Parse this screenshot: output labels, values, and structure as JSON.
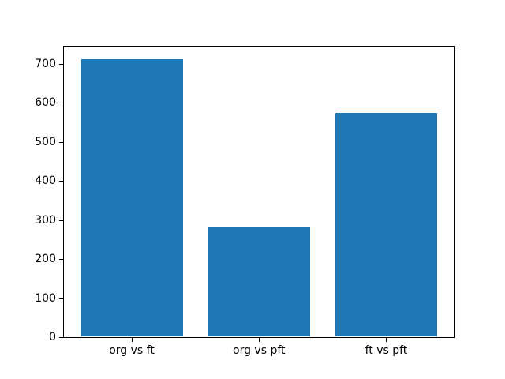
{
  "figure": {
    "background": "#ffffff",
    "axes_background": "#ffffff",
    "spine_color": "#000000",
    "tick_color": "#000000",
    "label_color": "#000000"
  },
  "chart_data": {
    "type": "bar",
    "categories": [
      "org vs ft",
      "org vs pft",
      "ft vs pft"
    ],
    "values": [
      713,
      282,
      575
    ],
    "bar_color": "#1f77b4",
    "bar_width": 0.8,
    "yticks": [
      0,
      100,
      200,
      300,
      400,
      500,
      600,
      700
    ],
    "ylim": [
      0,
      748.65
    ],
    "xlim": [
      -0.54,
      2.54
    ],
    "grid": false,
    "legend": null,
    "title": "",
    "xlabel": "",
    "ylabel": ""
  }
}
